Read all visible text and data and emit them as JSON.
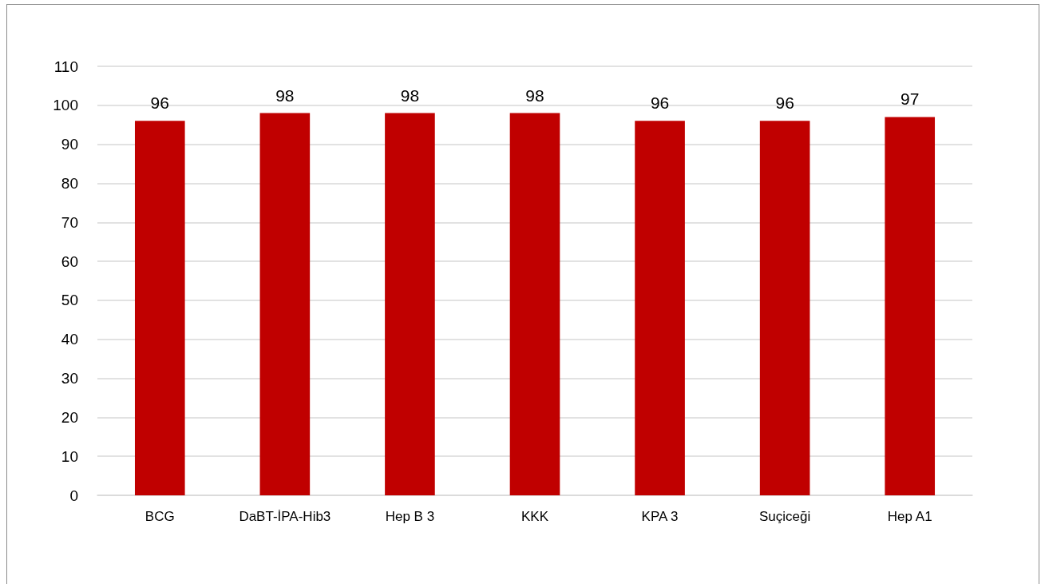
{
  "chart_data": {
    "type": "bar",
    "categories": [
      "BCG",
      "DaBT-İPA-Hib3",
      "Hep B 3",
      "KKK",
      "KPA 3",
      "Suçiceği",
      "Hep A1"
    ],
    "values": [
      96,
      98,
      98,
      98,
      96,
      96,
      97
    ],
    "color": "#c00000",
    "ylim": [
      0,
      110
    ],
    "yticks": [
      0,
      10,
      20,
      30,
      40,
      50,
      60,
      70,
      80,
      90,
      100,
      110
    ],
    "grid": "y",
    "data_labels": true
  }
}
